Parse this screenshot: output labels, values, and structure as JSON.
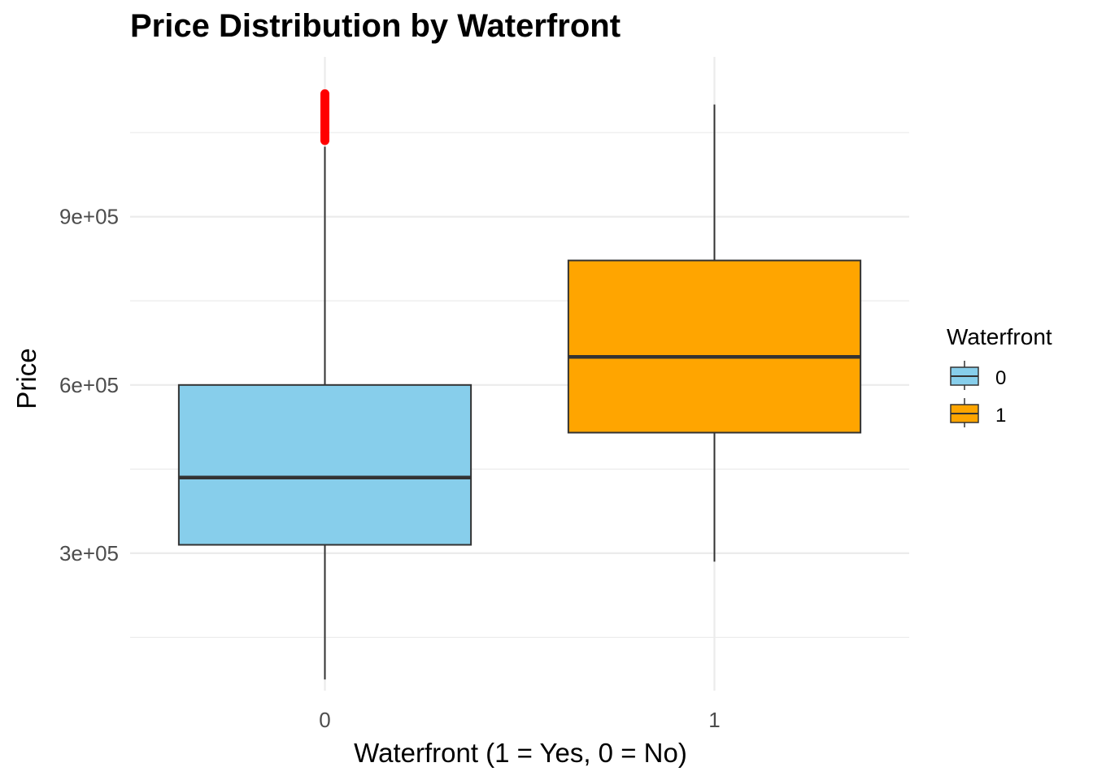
{
  "chart_data": {
    "type": "boxplot",
    "title": "Price Distribution by Waterfront",
    "xlabel": "Waterfront (1 = Yes, 0 = No)",
    "ylabel": "Price",
    "categories": [
      "0",
      "1"
    ],
    "y_ticks": [
      300000,
      600000,
      900000
    ],
    "y_tick_labels": [
      "3e+05",
      "6e+05",
      "9e+05"
    ],
    "ylim": [
      55000,
      1185000
    ],
    "grid": true,
    "legend": {
      "title": "Waterfront",
      "placement": "right",
      "entries": [
        "0",
        "1"
      ]
    },
    "boxes": [
      {
        "category": "0",
        "whisker_low": 75000,
        "q1": 315000,
        "median": 435000,
        "q3": 600000,
        "whisker_high": 1025000,
        "outliers_min": 1030000,
        "outliers_max": 1125000,
        "color": "#87CEEB"
      },
      {
        "category": "1",
        "whisker_low": 285000,
        "q1": 515000,
        "median": 650000,
        "q3": 822000,
        "whisker_high": 1100000,
        "color": "#FFA500"
      }
    ],
    "outlier_color": "#FF0000"
  }
}
